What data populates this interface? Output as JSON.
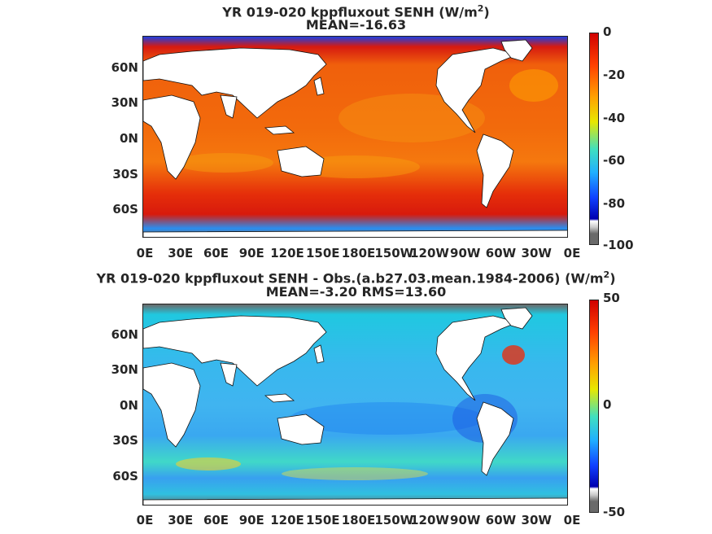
{
  "chart_data": [
    {
      "type": "heatmap",
      "title_prefix": "YR 019-020 kppfluxout  SENH (W/m",
      "title_exp": "2",
      "title_suffix": ")",
      "stats": "MEAN=-16.63",
      "xticks": [
        "0E",
        "30E",
        "60E",
        "90E",
        "120E",
        "150E",
        "180E",
        "150W",
        "120W",
        "90W",
        "60W",
        "30W",
        "0E"
      ],
      "yticks": [
        "60N",
        "30N",
        "0N",
        "30S",
        "60S"
      ],
      "colorbar": {
        "min": -100,
        "max": 0,
        "ticks": [
          "0",
          "-20",
          "-40",
          "-60",
          "-80",
          "-100"
        ]
      },
      "colors": {
        "dominant": "#f25a0a",
        "polar": "#d01010",
        "land": "#ffffff",
        "missing": "#6f6f6f"
      }
    },
    {
      "type": "heatmap",
      "title_prefix": "YR 019-020 kppfluxout SENH - Obs.(a.b27.03.mean.1984-2006) (W/m",
      "title_exp": "2",
      "title_suffix": ")",
      "stats": "MEAN=-3.20 RMS=13.60",
      "xticks": [
        "0E",
        "30E",
        "60E",
        "90E",
        "120E",
        "150E",
        "180E",
        "150W",
        "120W",
        "90W",
        "60W",
        "30W",
        "0E"
      ],
      "yticks": [
        "60N",
        "30N",
        "0N",
        "30S",
        "60S"
      ],
      "colorbar": {
        "min": -50,
        "max": 50,
        "ticks": [
          "50",
          "0",
          "-50"
        ]
      },
      "colors": {
        "dominant": "#3ec7e8",
        "positive": "#f04a10",
        "land": "#ffffff",
        "missing": "#6f6f6f"
      }
    }
  ]
}
